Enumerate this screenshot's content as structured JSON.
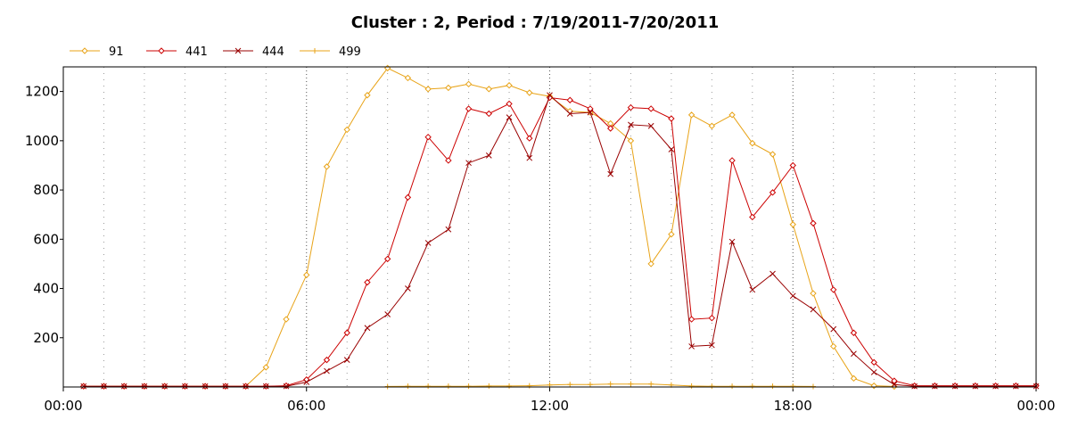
{
  "chart_data": {
    "type": "line",
    "title": "Cluster : 2, Period : 7/19/2011-7/20/2011",
    "xlabel": "",
    "ylabel": "",
    "xlim": [
      0,
      24
    ],
    "ylim": [
      0,
      1300
    ],
    "x_ticks": [
      {
        "value": 0,
        "label": "00:00"
      },
      {
        "value": 6,
        "label": "06:00"
      },
      {
        "value": 12,
        "label": "12:00"
      },
      {
        "value": 18,
        "label": "18:00"
      },
      {
        "value": 24,
        "label": "00:00"
      }
    ],
    "y_ticks": [
      200,
      400,
      600,
      800,
      1000,
      1200
    ],
    "grid": true,
    "legend_position": "top-left",
    "series": [
      {
        "name": "91",
        "color": "#E8A317",
        "marker": "diamond",
        "points": [
          [
            0.5,
            3
          ],
          [
            1,
            3
          ],
          [
            1.5,
            3
          ],
          [
            2,
            3
          ],
          [
            2.5,
            3
          ],
          [
            3,
            3
          ],
          [
            3.5,
            3
          ],
          [
            4,
            3
          ],
          [
            4.5,
            3
          ],
          [
            5,
            80
          ],
          [
            5.5,
            275
          ],
          [
            6,
            455
          ],
          [
            6.5,
            895
          ],
          [
            7,
            1045
          ],
          [
            7.5,
            1185
          ],
          [
            8,
            1295
          ],
          [
            8.5,
            1255
          ],
          [
            9,
            1210
          ],
          [
            9.5,
            1215
          ],
          [
            10,
            1230
          ],
          [
            10.5,
            1210
          ],
          [
            11,
            1225
          ],
          [
            11.5,
            1195
          ],
          [
            12,
            1180
          ],
          [
            12.5,
            1120
          ],
          [
            13,
            1115
          ],
          [
            13.5,
            1070
          ],
          [
            14,
            1000
          ],
          [
            14.5,
            500
          ],
          [
            15,
            620
          ],
          [
            15.5,
            1105
          ],
          [
            16,
            1060
          ],
          [
            16.5,
            1105
          ],
          [
            17,
            990
          ],
          [
            17.5,
            945
          ],
          [
            18,
            660
          ],
          [
            18.5,
            380
          ],
          [
            19,
            165
          ],
          [
            19.5,
            35
          ],
          [
            20,
            5
          ],
          [
            20.5,
            2
          ]
        ]
      },
      {
        "name": "441",
        "color": "#CC0000",
        "marker": "diamond",
        "points": [
          [
            0.5,
            3
          ],
          [
            1,
            3
          ],
          [
            1.5,
            3
          ],
          [
            2,
            3
          ],
          [
            2.5,
            3
          ],
          [
            3,
            3
          ],
          [
            3.5,
            3
          ],
          [
            4,
            3
          ],
          [
            4.5,
            3
          ],
          [
            5,
            3
          ],
          [
            5.5,
            5
          ],
          [
            6,
            30
          ],
          [
            6.5,
            110
          ],
          [
            7,
            220
          ],
          [
            7.5,
            425
          ],
          [
            8,
            520
          ],
          [
            8.5,
            770
          ],
          [
            9,
            1015
          ],
          [
            9.5,
            920
          ],
          [
            10,
            1130
          ],
          [
            10.5,
            1110
          ],
          [
            11,
            1150
          ],
          [
            11.5,
            1010
          ],
          [
            12,
            1175
          ],
          [
            12.5,
            1165
          ],
          [
            13,
            1130
          ],
          [
            13.5,
            1050
          ],
          [
            14,
            1135
          ],
          [
            14.5,
            1130
          ],
          [
            15,
            1090
          ],
          [
            15.5,
            275
          ],
          [
            16,
            280
          ],
          [
            16.5,
            920
          ],
          [
            17,
            690
          ],
          [
            17.5,
            790
          ],
          [
            18,
            900
          ],
          [
            18.5,
            665
          ],
          [
            19,
            395
          ],
          [
            19.5,
            220
          ],
          [
            20,
            100
          ],
          [
            20.5,
            25
          ],
          [
            21,
            5
          ],
          [
            21.5,
            5
          ],
          [
            22,
            5
          ],
          [
            22.5,
            5
          ],
          [
            23,
            5
          ],
          [
            23.5,
            5
          ],
          [
            24,
            5
          ]
        ]
      },
      {
        "name": "444",
        "color": "#990000",
        "marker": "x",
        "points": [
          [
            0.5,
            3
          ],
          [
            1,
            3
          ],
          [
            1.5,
            3
          ],
          [
            2,
            3
          ],
          [
            2.5,
            3
          ],
          [
            3,
            3
          ],
          [
            3.5,
            3
          ],
          [
            4,
            3
          ],
          [
            4.5,
            3
          ],
          [
            5,
            3
          ],
          [
            5.5,
            3
          ],
          [
            6,
            20
          ],
          [
            6.5,
            65
          ],
          [
            7,
            110
          ],
          [
            7.5,
            240
          ],
          [
            8,
            295
          ],
          [
            8.5,
            400
          ],
          [
            9,
            585
          ],
          [
            9.5,
            640
          ],
          [
            10,
            910
          ],
          [
            10.5,
            940
          ],
          [
            11,
            1095
          ],
          [
            11.5,
            930
          ],
          [
            12,
            1185
          ],
          [
            12.5,
            1110
          ],
          [
            13,
            1115
          ],
          [
            13.5,
            865
          ],
          [
            14,
            1065
          ],
          [
            14.5,
            1060
          ],
          [
            15,
            965
          ],
          [
            15.5,
            165
          ],
          [
            16,
            170
          ],
          [
            16.5,
            590
          ],
          [
            17,
            395
          ],
          [
            17.5,
            460
          ],
          [
            18,
            370
          ],
          [
            18.5,
            315
          ],
          [
            19,
            235
          ],
          [
            19.5,
            135
          ],
          [
            20,
            60
          ],
          [
            20.5,
            10
          ],
          [
            21,
            3
          ],
          [
            21.5,
            3
          ],
          [
            22,
            3
          ],
          [
            22.5,
            3
          ],
          [
            23,
            3
          ],
          [
            23.5,
            3
          ],
          [
            24,
            3
          ]
        ]
      },
      {
        "name": "499",
        "color": "#E8A317",
        "marker": "plus",
        "points": [
          [
            8,
            2
          ],
          [
            8.5,
            3
          ],
          [
            9,
            3
          ],
          [
            9.5,
            3
          ],
          [
            10,
            3
          ],
          [
            10.5,
            4
          ],
          [
            11,
            4
          ],
          [
            11.5,
            5
          ],
          [
            12,
            8
          ],
          [
            12.5,
            10
          ],
          [
            13,
            10
          ],
          [
            13.5,
            12
          ],
          [
            14,
            12
          ],
          [
            14.5,
            12
          ],
          [
            15,
            8
          ],
          [
            15.5,
            4
          ],
          [
            16,
            3
          ],
          [
            16.5,
            3
          ],
          [
            17,
            3
          ],
          [
            17.5,
            3
          ],
          [
            18,
            3
          ],
          [
            18.5,
            2
          ]
        ]
      }
    ]
  }
}
